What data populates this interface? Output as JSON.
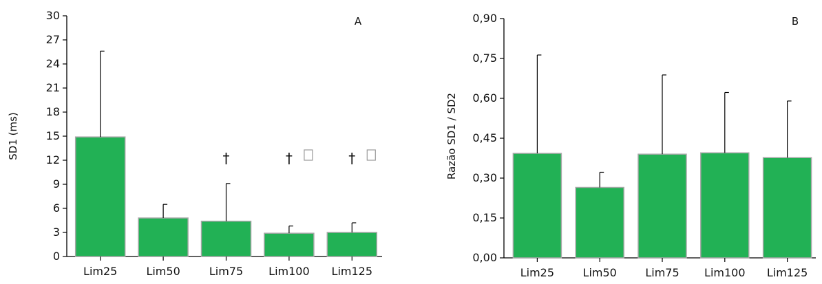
{
  "chart_data": [
    {
      "type": "bar",
      "panel_label": "A",
      "ylabel": "SD1 (ms)",
      "ylim": [
        0,
        30
      ],
      "yticks": [
        "0",
        "3",
        "6",
        "9",
        "12",
        "15",
        "18",
        "21",
        "24",
        "27",
        "30"
      ],
      "categories": [
        "Lim25",
        "Lim50",
        "Lim75",
        "Lim100",
        "Lim125"
      ],
      "values": [
        14.9,
        4.8,
        4.4,
        2.9,
        3.0
      ],
      "error_upper": [
        25.6,
        6.5,
        9.1,
        3.8,
        4.2
      ],
      "markers": [
        {
          "category": "Lim75",
          "dagger": "†",
          "box": false
        },
        {
          "category": "Lim100",
          "dagger": "†",
          "box": true
        },
        {
          "category": "Lim125",
          "dagger": "†",
          "box": true
        }
      ],
      "bar_color": "#22b155",
      "grid": false
    },
    {
      "type": "bar",
      "panel_label": "B",
      "ylabel": "Razão SD1 / SD2",
      "ylim": [
        0,
        0.9
      ],
      "yticks": [
        "0,00",
        "0,15",
        "0,30",
        "0,45",
        "0,60",
        "0,75",
        "0,90"
      ],
      "categories": [
        "Lim25",
        "Lim50",
        "Lim75",
        "Lim100",
        "Lim125"
      ],
      "values": [
        0.393,
        0.265,
        0.39,
        0.395,
        0.377
      ],
      "error_upper": [
        0.763,
        0.322,
        0.688,
        0.622,
        0.59
      ],
      "bar_color": "#22b155",
      "grid": false
    }
  ]
}
